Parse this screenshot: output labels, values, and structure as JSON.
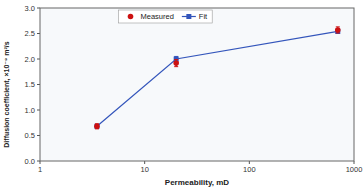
{
  "chart_data": {
    "type": "scatter",
    "x_label": "Permeability, mD",
    "y_label": "Diffusion coefficient, ×10⁻⁹ m²/s",
    "log": "x",
    "xlim": [
      1,
      1000
    ],
    "xticks": [
      1,
      10,
      100,
      1000
    ],
    "ylim": [
      0,
      3.0
    ],
    "yticks": [
      {
        "value": 0,
        "label": "0.0"
      },
      0.5,
      {
        "value": 1.0,
        "label": "1.0"
      },
      1.5,
      {
        "value": 2.0,
        "label": "2.0"
      },
      2.5,
      {
        "value": 3.0,
        "label": "3.0"
      }
    ],
    "grid": false,
    "legend": "top",
    "series": [
      {
        "name": "Measured",
        "color": "#cc1111",
        "marker": "circle",
        "x": [
          3.5,
          20,
          700
        ],
        "values": [
          0.68,
          1.92,
          2.57
        ],
        "errors": [
          0.05,
          0.07,
          0.06
        ]
      },
      {
        "name": "Fit",
        "color": "#3355bb",
        "marker": "square",
        "line_style": "solid",
        "x": [
          3.5,
          20,
          700
        ],
        "values": [
          0.68,
          2.0,
          2.54
        ],
        "errors": [
          0.0,
          0.05,
          0.04
        ]
      }
    ]
  }
}
